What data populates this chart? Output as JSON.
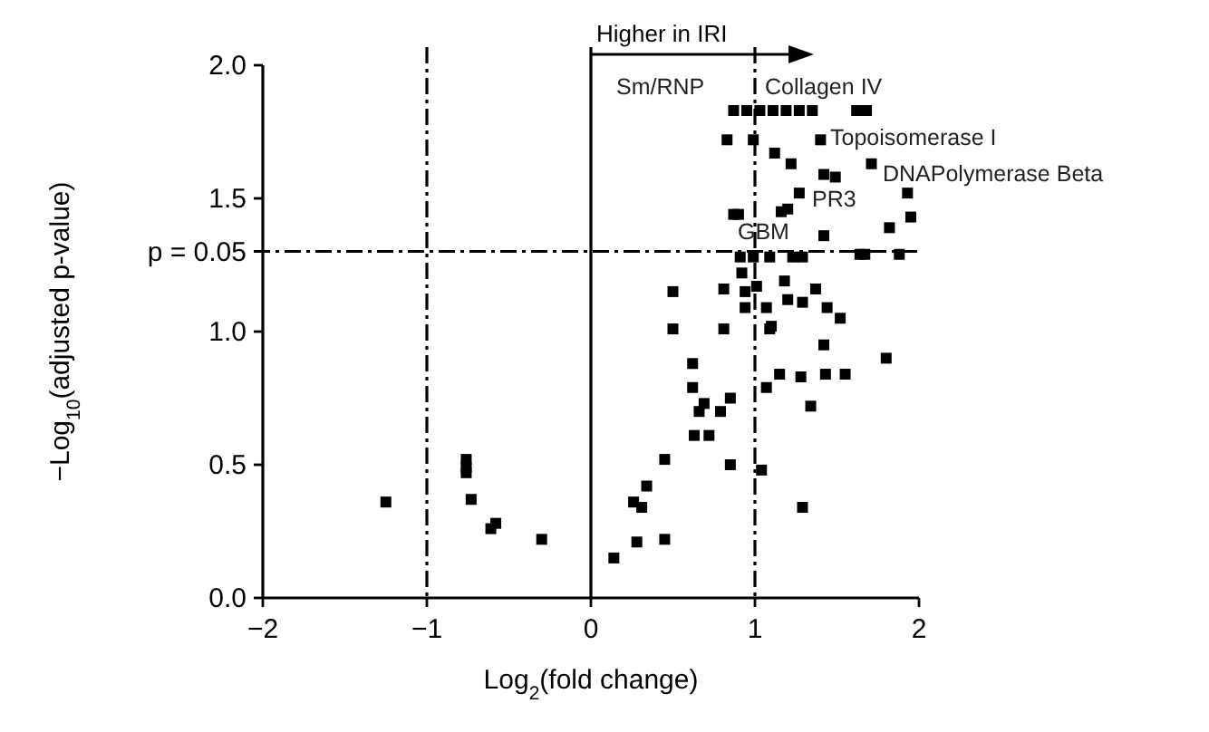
{
  "chart_data": {
    "type": "scatter",
    "xlabel": "Log$_{2}$(fold change)",
    "ylabel": "−Log$_{10}$(adjusted p-value)",
    "xlim": [
      -2,
      2
    ],
    "xticks": [
      {
        "value": -2,
        "label": "−2"
      },
      {
        "value": -1,
        "label": "−1"
      },
      0,
      1,
      2
    ],
    "ylim": [
      0,
      2
    ],
    "yticks": [
      {
        "value": 0,
        "label": "0.0"
      },
      0.5,
      {
        "value": 1,
        "label": "1.0"
      },
      1.5,
      {
        "value": 2,
        "label": "2.0"
      }
    ],
    "marker": "square",
    "grid": false,
    "series": [
      {
        "color": "#000000",
        "x": [
          -1.25,
          -0.76,
          -0.76,
          -0.76,
          -0.73,
          -0.61,
          -0.58,
          -0.3,
          0.14,
          0.28,
          0.45,
          0.26,
          0.31,
          0.34,
          0.45,
          0.85,
          1.04,
          1.29,
          0.63,
          0.72,
          0.66,
          0.69,
          0.79,
          0.85,
          0.62,
          0.62,
          1.07,
          1.15,
          1.28,
          1.43,
          1.55,
          1.34,
          1.8,
          1.42,
          1.09,
          0.5,
          0.81,
          0.5,
          0.81,
          0.94,
          0.92,
          0.91,
          0.99,
          1.09,
          1.23,
          1.29,
          1.01,
          0.94,
          1.07,
          1.1,
          1.18,
          1.2,
          1.29,
          1.37,
          1.44,
          1.52,
          1.67,
          1.88,
          0.9,
          1.2,
          1.42,
          1.82,
          1.95,
          1.27,
          1.93,
          0.87,
          0.95,
          1.03,
          1.11,
          1.19,
          1.27,
          1.35,
          1.62,
          1.68,
          0.83,
          0.99,
          1.4,
          1.12,
          1.22,
          1.42,
          1.49,
          1.71,
          0.87,
          1.16,
          1.64
        ],
        "values": [
          0.36,
          0.52,
          0.49,
          0.47,
          0.37,
          0.26,
          0.28,
          0.22,
          0.15,
          0.21,
          0.22,
          0.36,
          0.34,
          0.42,
          0.52,
          0.5,
          0.48,
          0.34,
          0.61,
          0.61,
          0.7,
          0.73,
          0.7,
          0.75,
          0.79,
          0.88,
          0.79,
          0.84,
          0.83,
          0.84,
          0.84,
          0.72,
          0.9,
          0.95,
          1.01,
          1.01,
          1.01,
          1.15,
          1.16,
          1.15,
          1.22,
          1.28,
          1.28,
          1.28,
          1.28,
          1.28,
          1.17,
          1.09,
          1.09,
          1.02,
          1.19,
          1.12,
          1.11,
          1.16,
          1.09,
          1.05,
          1.29,
          1.29,
          1.44,
          1.46,
          1.36,
          1.39,
          1.43,
          1.52,
          1.52,
          1.83,
          1.83,
          1.83,
          1.83,
          1.83,
          1.83,
          1.83,
          1.83,
          1.83,
          1.72,
          1.72,
          1.72,
          1.67,
          1.63,
          1.59,
          1.58,
          1.63,
          1.44,
          1.45,
          1.29
        ]
      }
    ],
    "ref_lines": [
      {
        "axis": "x",
        "value": -1,
        "line_style": "dashed"
      },
      {
        "axis": "x",
        "value": 0,
        "line_style": "solid"
      },
      {
        "axis": "x",
        "value": 1,
        "line_style": "dashed"
      },
      {
        "axis": "y",
        "value": 1.301,
        "line_style": "dashed"
      }
    ],
    "annotations": [
      "Higher in IRI",
      "Sm/RNP",
      "Collagen IV",
      "Topoisomerase I",
      "DNAPolymerase Beta",
      "PR3",
      "GBM",
      "p = 0.05"
    ]
  }
}
